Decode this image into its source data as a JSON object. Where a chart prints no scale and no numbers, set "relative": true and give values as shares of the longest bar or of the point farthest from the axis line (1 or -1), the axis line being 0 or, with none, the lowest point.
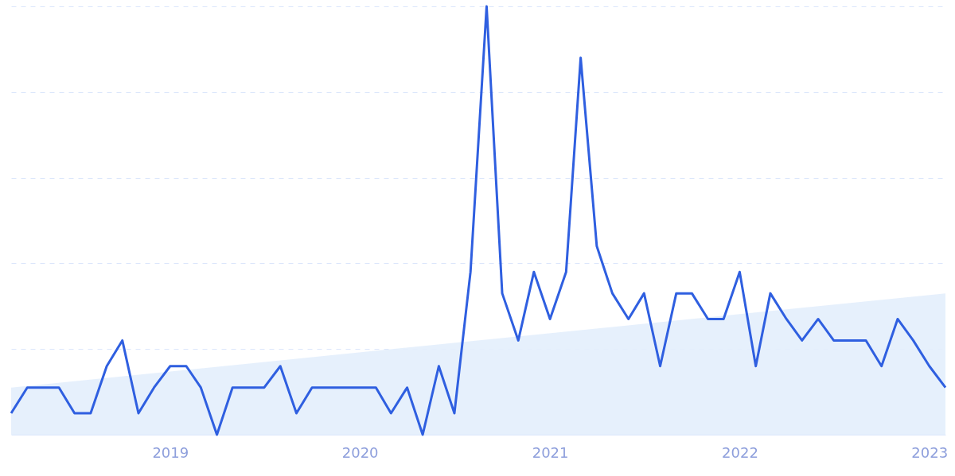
{
  "chart_data": {
    "type": "line",
    "relative": true,
    "x": [
      "2018-03",
      "2018-04",
      "2018-05",
      "2018-06",
      "2018-07",
      "2018-08",
      "2018-09",
      "2018-10",
      "2018-11",
      "2018-12",
      "2019-01",
      "2019-02",
      "2019-03",
      "2019-04",
      "2019-05",
      "2019-06",
      "2019-07",
      "2019-08",
      "2019-09",
      "2019-10",
      "2019-11",
      "2019-12",
      "2020-01",
      "2020-02",
      "2020-03",
      "2020-04",
      "2020-05",
      "2020-06",
      "2020-07",
      "2020-08",
      "2020-09",
      "2020-10",
      "2020-11",
      "2020-12",
      "2021-01",
      "2021-02",
      "2021-03",
      "2021-04",
      "2021-05",
      "2021-06",
      "2021-07",
      "2021-08",
      "2021-09",
      "2021-10",
      "2021-11",
      "2021-12",
      "2022-01",
      "2022-02",
      "2022-03",
      "2022-04",
      "2022-05",
      "2022-06",
      "2022-07",
      "2022-08",
      "2022-09",
      "2022-10",
      "2022-11",
      "2022-12",
      "2023-01",
      "2023-02"
    ],
    "series": [
      {
        "type": "area",
        "color": "#e3eefc",
        "x": [
          "2018-03",
          "2023-02"
        ],
        "values": [
          0.11,
          0.33
        ]
      },
      {
        "color": "#2f5fe0",
        "values": [
          0.05,
          0.11,
          0.11,
          0.11,
          0.05,
          0.05,
          0.16,
          0.22,
          0.05,
          0.11,
          0.16,
          0.16,
          0.11,
          0,
          0.11,
          0.11,
          0.11,
          0.16,
          0.05,
          0.11,
          0.11,
          0.11,
          0.11,
          0.11,
          0.05,
          0.11,
          0,
          0.16,
          0.05,
          0.38,
          1,
          0.33,
          0.22,
          0.38,
          0.27,
          0.38,
          0.88,
          0.44,
          0.33,
          0.27,
          0.33,
          0.16,
          0.33,
          0.33,
          0.27,
          0.27,
          0.38,
          0.16,
          0.33,
          0.27,
          0.22,
          0.27,
          0.22,
          0.22,
          0.22,
          0.16,
          0.27,
          0.22,
          0.16,
          0.11
        ]
      }
    ],
    "xlim": [
      "2018-03",
      "2023-02"
    ],
    "xticks": [
      {
        "value": "2019",
        "label": "2019"
      },
      {
        "value": "2020",
        "label": "2020"
      },
      {
        "value": "2021",
        "label": "2021"
      },
      {
        "value": "2022",
        "label": "2022"
      },
      {
        "value": "2023",
        "label": "2023"
      }
    ],
    "grid": "y",
    "marker": "none"
  }
}
